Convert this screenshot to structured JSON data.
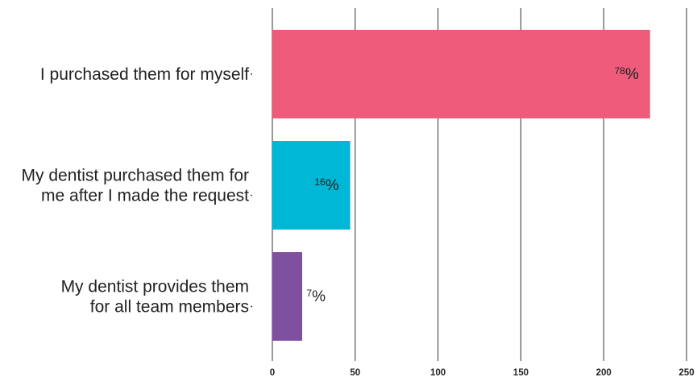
{
  "chart_data": {
    "type": "bar",
    "orientation": "horizontal",
    "categories": [
      [
        "I purchased them for myself"
      ],
      [
        "My dentist purchased them for",
        "me after I made the request"
      ],
      [
        "My dentist provides them",
        "for all team members"
      ]
    ],
    "values": [
      228,
      47,
      18
    ],
    "percent_labels": [
      "78",
      "16",
      "7"
    ],
    "percent_sign": "%",
    "colors": [
      "#ef5b7b",
      "#00b7d6",
      "#8050a0"
    ],
    "xlim": [
      0,
      250
    ],
    "xticks": [
      0,
      50,
      100,
      150,
      200,
      250
    ],
    "grid": true,
    "title": "",
    "xlabel": "",
    "ylabel": ""
  }
}
